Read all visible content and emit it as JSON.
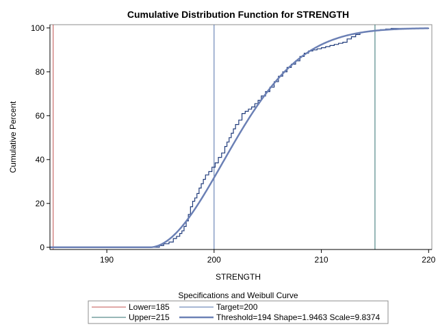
{
  "chart_data": {
    "type": "line",
    "title": "Cumulative Distribution Function for STRENGTH",
    "xlabel": "STRENGTH",
    "ylabel": "Cumulative Percent",
    "xlim": [
      184.7,
      220.3
    ],
    "ylim": [
      -1,
      101.5
    ],
    "xticks": [
      190,
      200,
      210,
      220
    ],
    "yticks": [
      0,
      20,
      40,
      60,
      80,
      100
    ],
    "reference_lines": [
      {
        "name": "Lower=185",
        "x": 185,
        "color": "#c0504d"
      },
      {
        "name": "Target=200",
        "x": 200,
        "color": "#4f6fa8"
      },
      {
        "name": "Upper=215",
        "x": 215,
        "color": "#2f6f6f"
      }
    ],
    "series": [
      {
        "kind": "empirical-step",
        "color": "#1f3a7a",
        "x": [
          184.7,
          194.9,
          195.3,
          195.8,
          196.2,
          196.5,
          196.8,
          197.0,
          197.2,
          197.4,
          197.6,
          197.8,
          198.0,
          198.2,
          198.4,
          198.6,
          198.8,
          199.0,
          199.2,
          199.5,
          199.8,
          200.1,
          200.4,
          200.7,
          201.0,
          201.2,
          201.4,
          201.6,
          201.8,
          202.0,
          202.3,
          202.6,
          202.9,
          203.2,
          203.5,
          203.8,
          204.1,
          204.4,
          204.8,
          205.2,
          205.6,
          206.0,
          206.4,
          206.8,
          207.2,
          207.6,
          208.0,
          208.4,
          208.8,
          209.2,
          209.6,
          210.0,
          210.4,
          210.8,
          211.2,
          211.6,
          212.0,
          212.4,
          212.8,
          213.2,
          213.6,
          214.0,
          214.5,
          215.0,
          215.5,
          216.0,
          216.5,
          220.0
        ],
        "y": [
          0,
          0.8,
          1.6,
          2.4,
          4.0,
          5.0,
          6.3,
          7.5,
          9.5,
          12.0,
          15.0,
          18.5,
          21.0,
          22.5,
          24.5,
          27.0,
          29.0,
          31.0,
          33.0,
          34.5,
          36.5,
          38.5,
          41.0,
          43.0,
          46.0,
          48.0,
          50.0,
          52.0,
          54.0,
          56.0,
          58.0,
          61.0,
          62.0,
          63.0,
          64.0,
          65.5,
          67.0,
          69.0,
          71.0,
          73.0,
          75.5,
          78.0,
          80.0,
          82.0,
          83.5,
          85.0,
          87.0,
          88.5,
          89.5,
          90.0,
          90.5,
          91.0,
          91.5,
          92.0,
          92.5,
          93.0,
          93.5,
          95.0,
          96.0,
          97.0,
          98.0,
          98.3,
          98.6,
          98.9,
          99.2,
          99.5,
          99.8,
          100.0
        ]
      },
      {
        "kind": "weibull-fit",
        "name": "Threshold=194 Shape=1.9463 Scale=9.8374",
        "color": "#6b80b5",
        "threshold": 194,
        "shape": 1.9463,
        "scale": 9.8374,
        "x_range": [
          184.7,
          220.0
        ]
      }
    ],
    "legend": {
      "title": "Specifications and Weibull Curve",
      "placement": "bottom",
      "items": [
        {
          "label": "Lower=185",
          "color": "#c0504d",
          "style": "thin"
        },
        {
          "label": "Target=200",
          "color": "#4f6fa8",
          "style": "thin"
        },
        {
          "label": "Upper=215",
          "color": "#2f6f6f",
          "style": "thin"
        },
        {
          "label": "Threshold=194 Shape=1.9463 Scale=9.8374",
          "color": "#6b80b5",
          "style": "thick"
        }
      ]
    }
  }
}
